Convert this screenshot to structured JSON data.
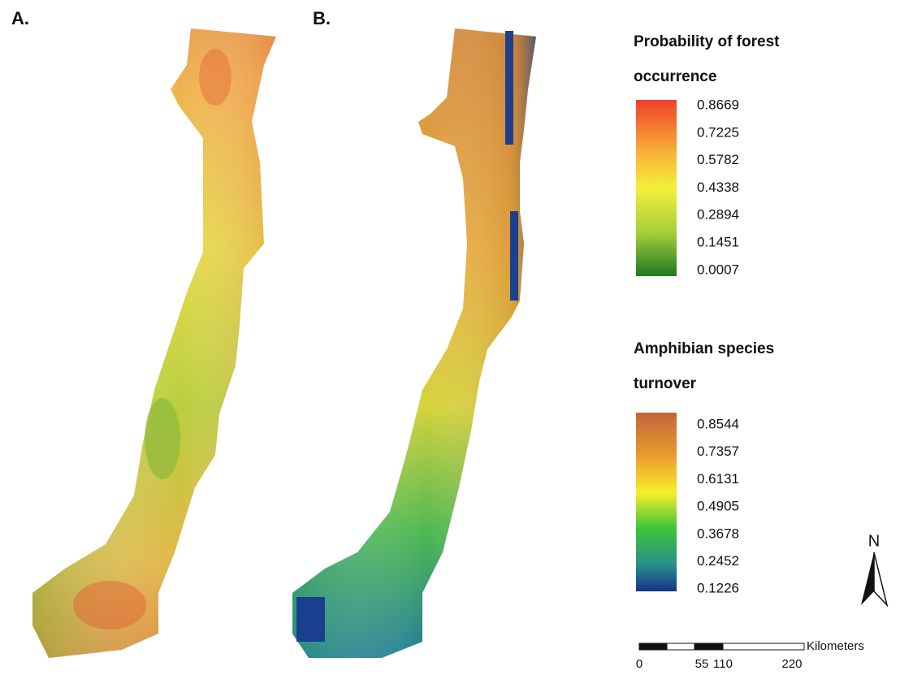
{
  "panels": [
    {
      "label": "A."
    },
    {
      "label": "B."
    }
  ],
  "legends": [
    {
      "title_lines": [
        "Probability of forest",
        "occurrence"
      ],
      "labels": [
        "0.8669",
        "0.7225",
        "0.5782",
        "0.4338",
        "0.2894",
        "0.1451",
        "0.0007"
      ]
    },
    {
      "title_lines": [
        "Amphibian species",
        "turnover"
      ],
      "labels": [
        "0.8544",
        "0.7357",
        "0.6131",
        "0.4905",
        "0.3678",
        "0.2452",
        "0.1226"
      ]
    }
  ],
  "north_arrow": {
    "label": "N"
  },
  "scale_bar": {
    "ticks": [
      "0",
      "55",
      "110",
      "220"
    ],
    "unit": "Kilometers"
  }
}
